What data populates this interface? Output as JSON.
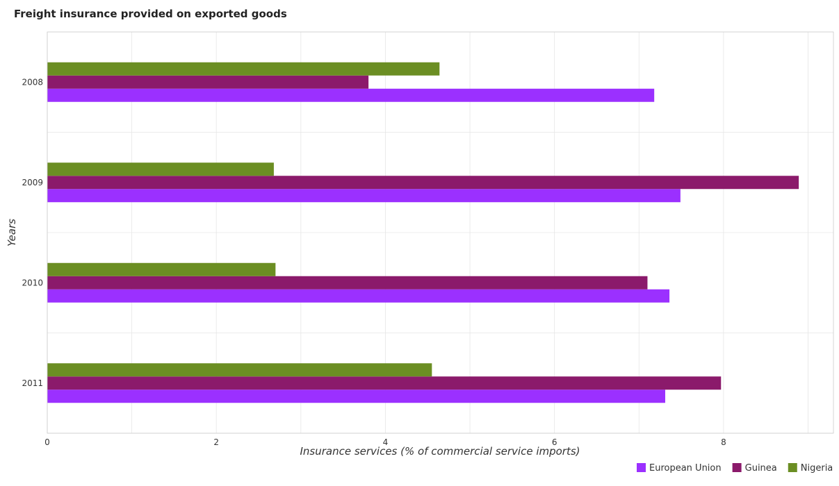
{
  "chart_data": {
    "type": "bar",
    "orientation": "horizontal",
    "title": "Freight insurance provided on exported goods",
    "xlabel": "Insurance services (% of commercial service imports)",
    "ylabel": "Years",
    "categories": [
      "2008",
      "2009",
      "2010",
      "2011"
    ],
    "xlim": [
      0,
      9.3
    ],
    "xticks": [
      0,
      2,
      4,
      6,
      8
    ],
    "xtick_labels": [
      "0",
      "2",
      "4",
      "6",
      "8"
    ],
    "grid": true,
    "legend_position": "bottom-right",
    "series": [
      {
        "name": "European Union",
        "color": "#9b30ff",
        "values": [
          7.18,
          7.49,
          7.36,
          7.31
        ]
      },
      {
        "name": "Guinea",
        "color": "#8b1a6b",
        "values": [
          3.8,
          8.89,
          7.1,
          7.97
        ]
      },
      {
        "name": "Nigeria",
        "color": "#6b8e23",
        "values": [
          4.64,
          2.68,
          2.7,
          4.55
        ]
      }
    ]
  }
}
